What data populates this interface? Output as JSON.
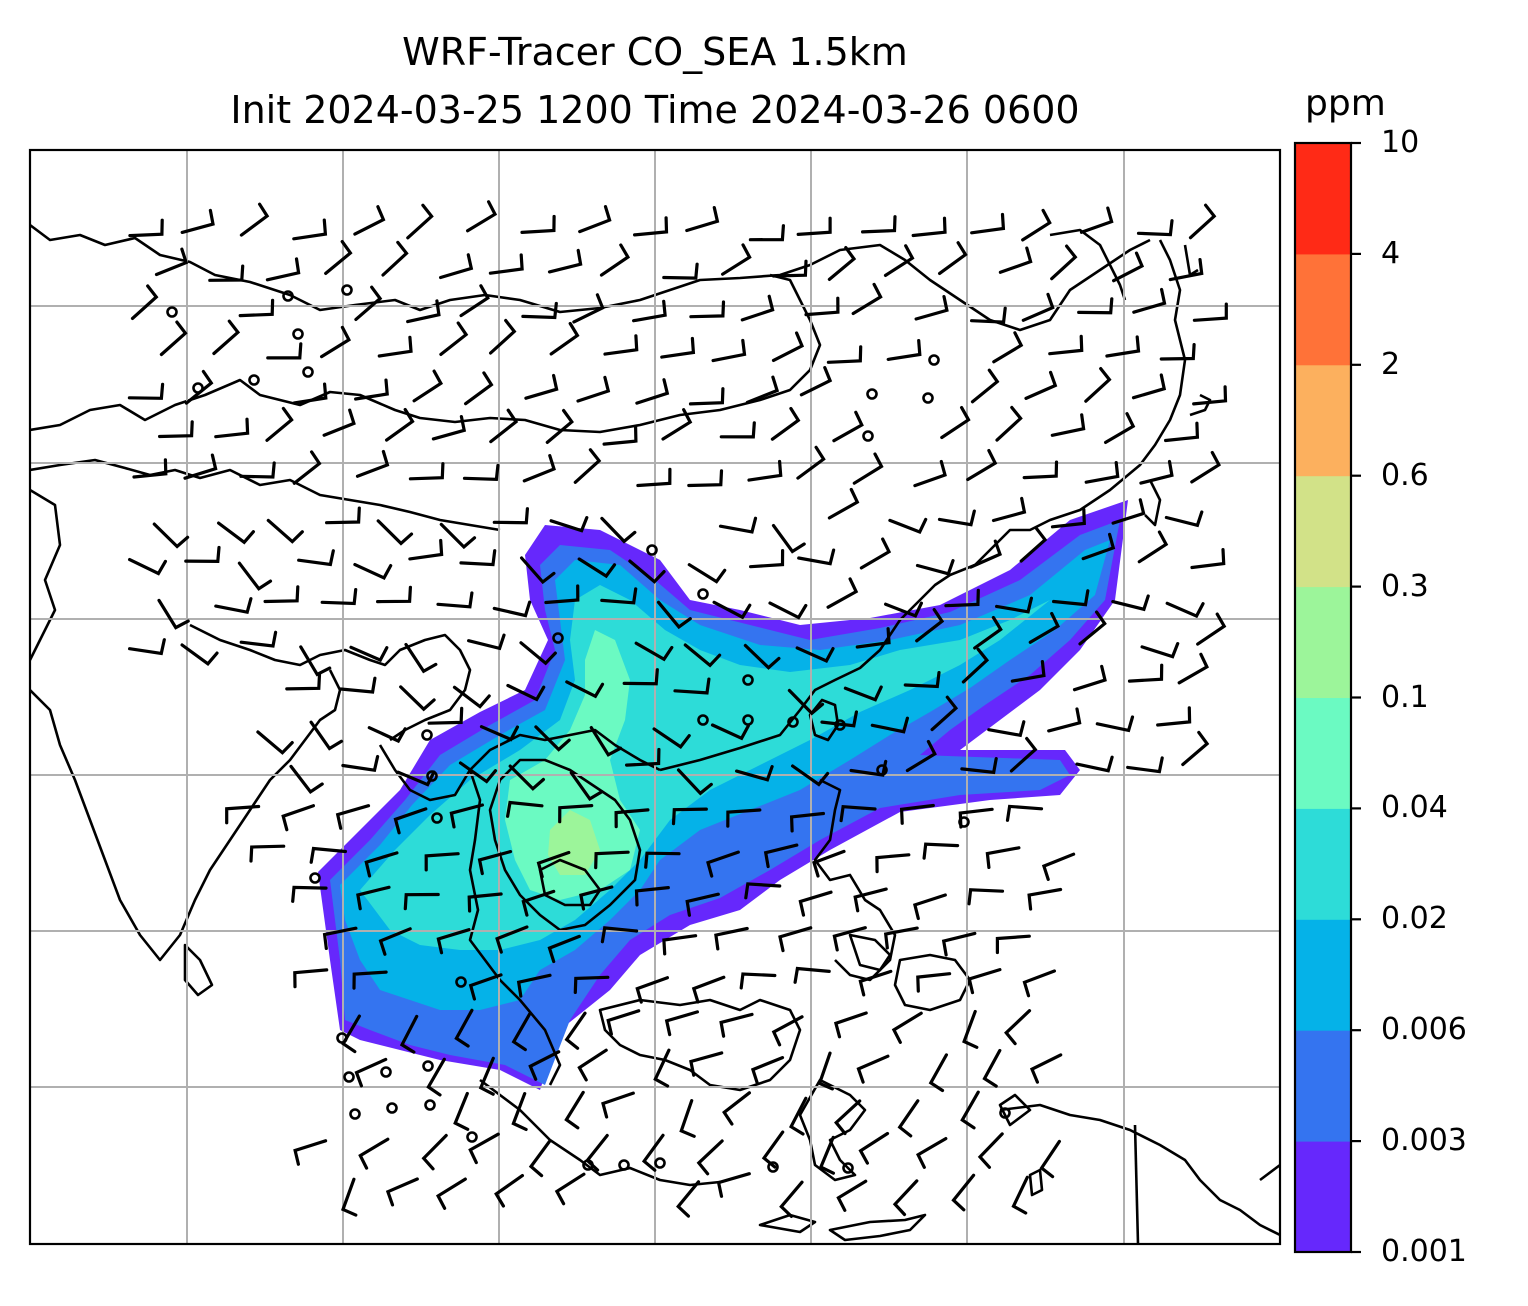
{
  "title": {
    "line1": "WRF-Tracer CO_SEA 1.5km",
    "line2": "Init 2024-03-25 1200 Time 2024-03-26 0600"
  },
  "colorbar": {
    "unit": "ppm",
    "ticks": [
      "0.001",
      "0.003",
      "0.006",
      "0.02",
      "0.04",
      "0.1",
      "0.3",
      "0.6",
      "2",
      "4",
      "10"
    ],
    "colors": [
      "#6628fc",
      "#3474f0",
      "#05b2e8",
      "#2ddcd8",
      "#6bfac2",
      "#9cf59a",
      "#d2e288",
      "#fcb05e",
      "#ff7238",
      "#ff2a16"
    ]
  },
  "map": {
    "gridlines": true,
    "frame_color": "#000000",
    "grid_color": "#b0b0b0",
    "coast_color": "#000000",
    "barb_color": "#000000"
  }
}
